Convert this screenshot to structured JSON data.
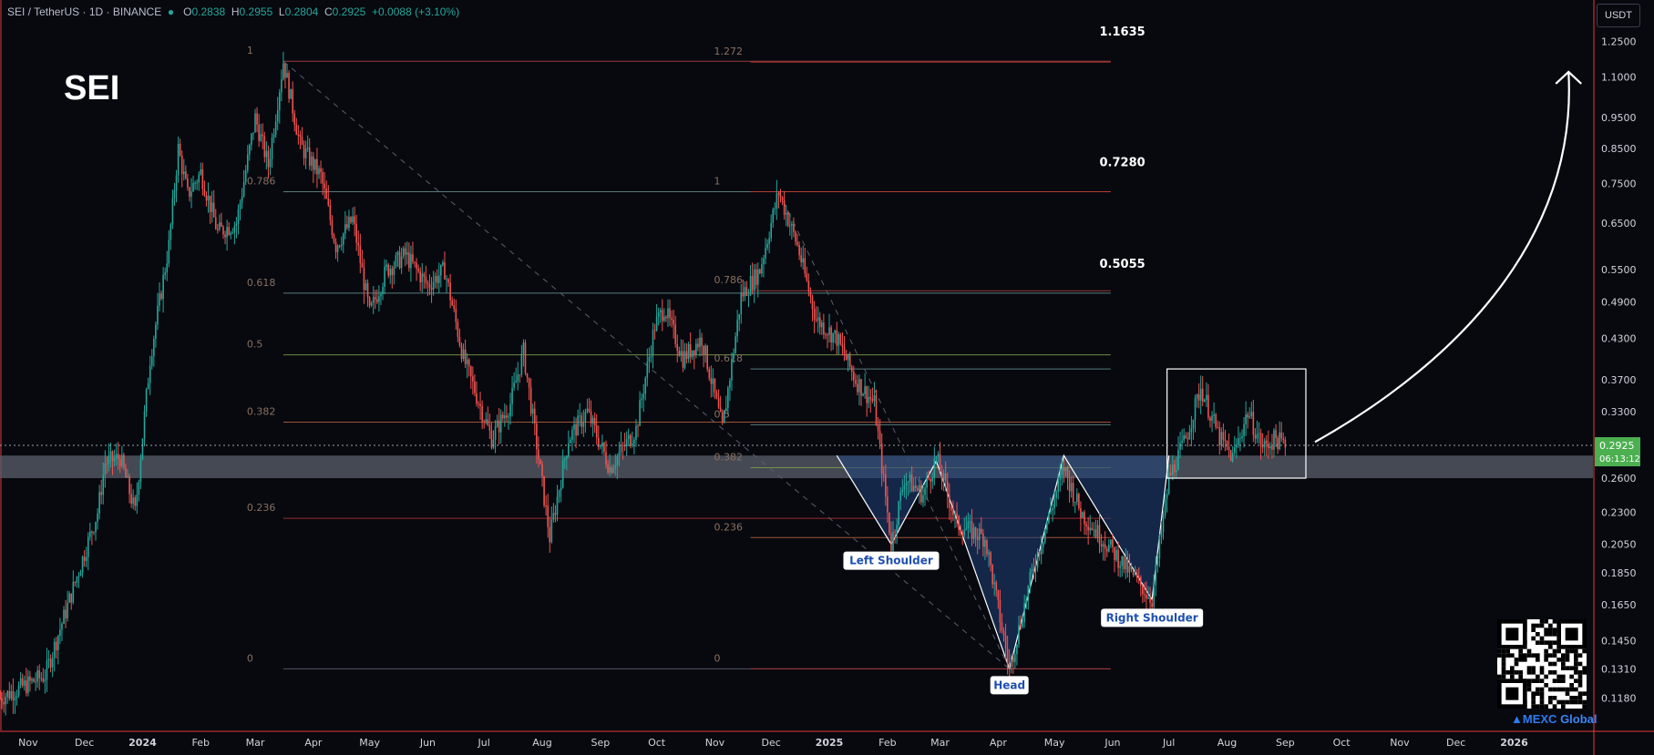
{
  "header": {
    "pair": "SEI / TetherUS",
    "interval": "1D",
    "exchange": "BINANCE",
    "open_label": "O",
    "open": "0.2838",
    "high_label": "H",
    "high": "0.2955",
    "low_label": "L",
    "low": "0.2804",
    "close_label": "C",
    "close": "0.2925",
    "change": "+0.0088 (+3.10%)"
  },
  "symbol_title": "SEI",
  "unit_button": "USDT",
  "price_tag": {
    "price": "0.2925",
    "countdown": "06:13:12"
  },
  "watermark": {
    "brand": "MEXC",
    "suffix": "Global"
  },
  "colors": {
    "background": "#07090f",
    "up": "#26a69a",
    "down": "#ef5350",
    "support_band": "#5a5f6c",
    "price_tag": "#4caf50"
  },
  "chart_data": {
    "type": "candlestick",
    "scale": "log",
    "ylim": [
      0.105,
      1.45
    ],
    "y_ticks": [
      "1.2500",
      "1.1000",
      "0.9500",
      "0.8500",
      "0.7500",
      "0.6500",
      "0.5500",
      "0.4900",
      "0.4300",
      "0.3700",
      "0.3300",
      "0.2925",
      "0.2600",
      "0.2300",
      "0.2050",
      "0.1850",
      "0.1650",
      "0.1450",
      "0.1310",
      "0.1180"
    ],
    "y_tick_values": [
      1.25,
      1.1,
      0.95,
      0.85,
      0.75,
      0.65,
      0.55,
      0.49,
      0.43,
      0.37,
      0.33,
      0.2925,
      0.26,
      0.23,
      0.205,
      0.185,
      0.165,
      0.145,
      0.131,
      0.118
    ],
    "x_ticks": [
      "Nov",
      "Dec",
      "2024",
      "Feb",
      "Mar",
      "Apr",
      "May",
      "Jun",
      "Jul",
      "Aug",
      "Sep",
      "Oct",
      "Nov",
      "Dec",
      "2025",
      "Feb",
      "Mar",
      "Apr",
      "May",
      "Jun",
      "Jul",
      "Aug",
      "Sep",
      "Oct",
      "Nov",
      "Dec",
      "2026"
    ],
    "x_tick_dates": [
      "2023-11-01",
      "2023-12-01",
      "2024-01-01",
      "2024-02-01",
      "2024-03-01",
      "2024-04-01",
      "2024-05-01",
      "2024-06-01",
      "2024-07-01",
      "2024-08-01",
      "2024-09-01",
      "2024-10-01",
      "2024-11-01",
      "2024-12-01",
      "2025-01-01",
      "2025-02-01",
      "2025-03-01",
      "2025-04-01",
      "2025-05-01",
      "2025-06-01",
      "2025-07-01",
      "2025-08-01",
      "2025-09-01",
      "2025-10-01",
      "2025-11-01",
      "2025-12-01",
      "2026-01-01"
    ],
    "x_range": [
      "2023-10-17",
      "2026-02-12"
    ],
    "price_path": [
      [
        "2023-10-17",
        0.118
      ],
      [
        "2023-11-10",
        0.128
      ],
      [
        "2023-11-25",
        0.175
      ],
      [
        "2023-12-08",
        0.23
      ],
      [
        "2023-12-12",
        0.275
      ],
      [
        "2023-12-20",
        0.28
      ],
      [
        "2023-12-28",
        0.23
      ],
      [
        "2024-01-05",
        0.4
      ],
      [
        "2024-01-15",
        0.6
      ],
      [
        "2024-01-20",
        0.85
      ],
      [
        "2024-01-25",
        0.72
      ],
      [
        "2024-02-01",
        0.78
      ],
      [
        "2024-02-10",
        0.63
      ],
      [
        "2024-02-20",
        0.65
      ],
      [
        "2024-03-01",
        0.95
      ],
      [
        "2024-03-08",
        0.8
      ],
      [
        "2024-03-16",
        1.1635
      ],
      [
        "2024-03-25",
        0.86
      ],
      [
        "2024-04-05",
        0.77
      ],
      [
        "2024-04-13",
        0.6
      ],
      [
        "2024-04-22",
        0.66
      ],
      [
        "2024-05-01",
        0.47
      ],
      [
        "2024-05-10",
        0.55
      ],
      [
        "2024-05-20",
        0.58
      ],
      [
        "2024-06-01",
        0.52
      ],
      [
        "2024-06-10",
        0.55
      ],
      [
        "2024-06-20",
        0.4
      ],
      [
        "2024-07-05",
        0.3
      ],
      [
        "2024-07-15",
        0.34
      ],
      [
        "2024-07-22",
        0.41
      ],
      [
        "2024-08-05",
        0.21
      ],
      [
        "2024-08-15",
        0.3
      ],
      [
        "2024-08-25",
        0.33
      ],
      [
        "2024-09-06",
        0.27
      ],
      [
        "2024-09-20",
        0.31
      ],
      [
        "2024-09-30",
        0.45
      ],
      [
        "2024-10-05",
        0.48
      ],
      [
        "2024-10-15",
        0.4
      ],
      [
        "2024-10-25",
        0.43
      ],
      [
        "2024-11-05",
        0.31
      ],
      [
        "2024-11-15",
        0.5
      ],
      [
        "2024-11-25",
        0.55
      ],
      [
        "2024-12-05",
        0.728
      ],
      [
        "2024-12-15",
        0.6
      ],
      [
        "2024-12-25",
        0.46
      ],
      [
        "2025-01-05",
        0.43
      ],
      [
        "2025-01-15",
        0.37
      ],
      [
        "2025-01-25",
        0.34
      ],
      [
        "2025-02-03",
        0.205
      ],
      [
        "2025-02-10",
        0.26
      ],
      [
        "2025-02-20",
        0.245
      ],
      [
        "2025-02-27",
        0.28
      ],
      [
        "2025-03-10",
        0.22
      ],
      [
        "2025-03-25",
        0.21
      ],
      [
        "2025-04-07",
        0.131
      ],
      [
        "2025-04-20",
        0.19
      ],
      [
        "2025-05-06",
        0.27
      ],
      [
        "2025-05-15",
        0.23
      ],
      [
        "2025-06-01",
        0.2
      ],
      [
        "2025-06-22",
        0.168
      ],
      [
        "2025-07-01",
        0.26
      ],
      [
        "2025-07-10",
        0.3
      ],
      [
        "2025-07-18",
        0.36
      ],
      [
        "2025-07-28",
        0.3
      ],
      [
        "2025-08-04",
        0.28
      ],
      [
        "2025-08-12",
        0.33
      ],
      [
        "2025-08-20",
        0.29
      ],
      [
        "2025-08-27",
        0.3
      ],
      [
        "2025-09-01",
        0.2925
      ]
    ],
    "fib_retracements": [
      {
        "levels": [
          {
            "label": "1.272",
            "value": 1.16
          },
          {
            "label": "1",
            "value": 1.1635
          },
          {
            "label": "0.786",
            "value": 0.728
          },
          {
            "label": "0.618",
            "value": 0.5055
          },
          {
            "label": "0.5",
            "value": 0.405
          },
          {
            "label": "0.382",
            "value": 0.318
          },
          {
            "label": "0.236",
            "value": 0.225
          },
          {
            "label": "0",
            "value": 0.131
          }
        ],
        "start": "2024-03-16",
        "end": "2025-01-31"
      },
      {
        "levels": [
          {
            "label": "1",
            "value": 0.728
          },
          {
            "label": "0.786",
            "value": 0.51
          },
          {
            "label": "0.618",
            "value": 0.385
          },
          {
            "label": "0.5",
            "value": 0.315
          },
          {
            "label": "0.382",
            "value": 0.27
          },
          {
            "label": "0.236",
            "value": 0.21
          },
          {
            "label": "0",
            "value": 0.131
          }
        ],
        "start": "2024-12-05",
        "end": "2025-01-31"
      }
    ],
    "targets": [
      {
        "label": "1.1635",
        "value": 1.1635
      },
      {
        "label": "0.7280",
        "value": 0.728
      },
      {
        "label": "0.5055",
        "value": 0.5055
      }
    ],
    "support_band": [
      0.26,
      0.282
    ],
    "patterns": {
      "name": "inverse head and shoulders",
      "neckline": 0.282,
      "left_shoulder": {
        "label": "Left Shoulder",
        "date": "2025-02-03",
        "value": 0.205
      },
      "head": {
        "label": "Head",
        "date": "2025-04-07",
        "value": 0.131
      },
      "right_shoulder": {
        "label": "Right Shoulder",
        "date": "2025-06-22",
        "value": 0.168
      }
    },
    "consolidation_box": {
      "start": "2025-06-30",
      "end": "2025-09-12",
      "top": 0.385,
      "bottom": 0.26
    },
    "projection_arrow": {
      "start": [
        "2025-09-12",
        0.3
      ],
      "end": [
        "2026-01-30",
        1.12
      ]
    },
    "last_price": 0.2925
  }
}
